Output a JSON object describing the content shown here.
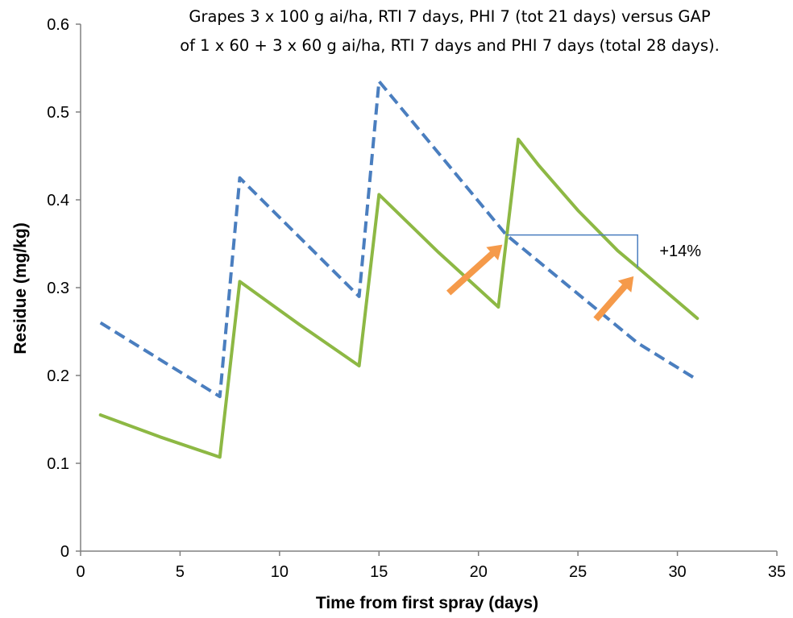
{
  "colors": {
    "dashed_series": "#4a7ebf",
    "solid_series": "#8db844",
    "arrow": "#f59a4a",
    "bracket": "#4a7ebf",
    "axis": "#808080"
  },
  "chart_data": {
    "type": "line",
    "title_lines": [
      "Grapes 3 x 100 g ai/ha, RTI 7 days, PHI 7 (tot 21 days) versus GAP",
      "of 1 x 60 + 3 x 60 g ai/ha, RTI 7 days and PHI 7 days (total 28 days)."
    ],
    "xlabel": "Time from first spray (days)",
    "ylabel": "Residue (mg/kg)",
    "xlim": [
      0,
      35
    ],
    "ylim": [
      0,
      0.6
    ],
    "xticks": [
      0,
      5,
      10,
      15,
      20,
      25,
      30,
      35
    ],
    "yticks": [
      0,
      0.1,
      0.2,
      0.3,
      0.4,
      0.5,
      0.6
    ],
    "ytick_labels": [
      "0",
      "0.1",
      "0.2",
      "0.3",
      "0.4",
      "0.5",
      "0.6"
    ],
    "grid": false,
    "legend": "none",
    "series": [
      {
        "style": "dashed",
        "color": "#4a7ebf",
        "x": [
          1,
          7,
          8,
          14,
          15,
          21.4,
          28,
          31
        ],
        "y": [
          0.26,
          0.176,
          0.425,
          0.29,
          0.535,
          0.36,
          0.237,
          0.195
        ]
      },
      {
        "style": "solid",
        "color": "#8db844",
        "x": [
          1,
          4,
          7,
          8,
          11,
          14,
          15,
          18,
          21,
          22,
          23,
          25,
          27,
          28,
          31
        ],
        "y": [
          0.155,
          0.13,
          0.107,
          0.307,
          0.258,
          0.211,
          0.406,
          0.34,
          0.278,
          0.469,
          0.44,
          0.388,
          0.342,
          0.323,
          0.265
        ]
      }
    ],
    "annotations": {
      "bracket": {
        "from_x": 21.4,
        "to_x": 28,
        "y_top": 0.36,
        "y_bottom": 0.323
      },
      "label": {
        "text": "+14%",
        "x": 29.1,
        "y": 0.342
      },
      "arrows": [
        {
          "from": [
            18.5,
            0.294
          ],
          "to": [
            21.2,
            0.349
          ]
        },
        {
          "from": [
            25.9,
            0.264
          ],
          "to": [
            27.8,
            0.313
          ]
        }
      ]
    }
  }
}
